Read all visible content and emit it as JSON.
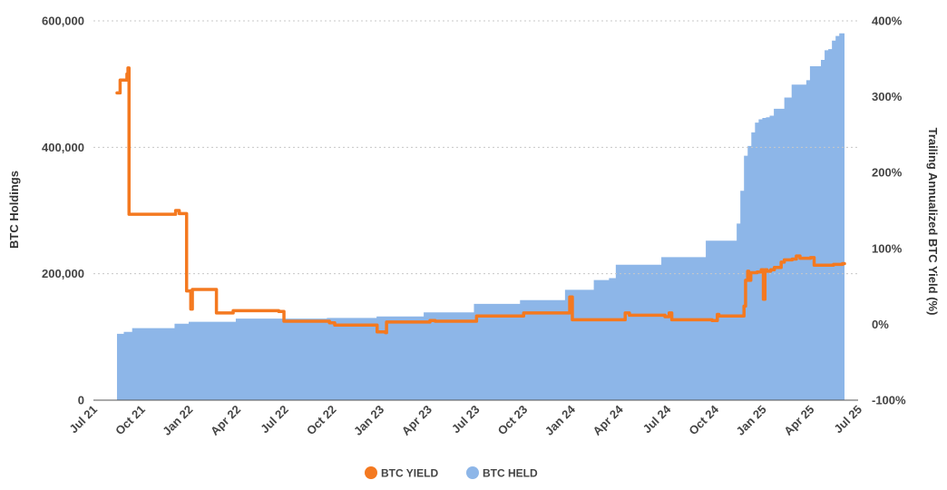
{
  "chart_data": {
    "type": "area",
    "x_tick_labels": [
      "Jul 21",
      "Oct 21",
      "Jan 22",
      "Apr 22",
      "Jul 22",
      "Oct 22",
      "Jan 23",
      "Apr 23",
      "Jul 23",
      "Oct 23",
      "Jan 24",
      "Apr 24",
      "Jul 24",
      "Oct 24",
      "Jan 25",
      "Apr 25",
      "Jul 25"
    ],
    "xlim": [
      "2021-07-01",
      "2025-07-01"
    ],
    "ylabel_left": "BTC Holdings",
    "ylabel_right": "Trailing Annualized BTC Yield (%)",
    "ylim_left": [
      0,
      600000
    ],
    "ylim_right": [
      -100,
      400
    ],
    "y_left_ticks": [
      0,
      200000,
      400000,
      600000
    ],
    "y_left_tick_labels": [
      "0",
      "200,000",
      "400,000",
      "600,000"
    ],
    "y_right_ticks": [
      -100,
      0,
      100,
      200,
      300,
      400
    ],
    "y_right_tick_labels": [
      "-100%",
      "0%",
      "100%",
      "200%",
      "300%",
      "400%"
    ],
    "grid": "horizontal dotted",
    "legend_position": "bottom-center",
    "colors": {
      "btc_yield": "#f47920",
      "btc_held": "#8db6e8",
      "grid": "#c8c8c8",
      "baseline": "#555555"
    },
    "series": [
      {
        "name": "BTC YIELD",
        "axis": "right",
        "kind": "step-line",
        "points": [
          [
            "2021-08-15",
            305
          ],
          [
            "2021-08-21",
            322
          ],
          [
            "2021-09-01",
            322
          ],
          [
            "2021-09-03",
            330
          ],
          [
            "2021-09-05",
            338
          ],
          [
            "2021-09-07",
            145
          ],
          [
            "2021-12-01",
            145
          ],
          [
            "2021-12-05",
            150
          ],
          [
            "2021-12-08",
            150
          ],
          [
            "2021-12-12",
            146
          ],
          [
            "2021-12-20",
            146
          ],
          [
            "2021-12-26",
            44
          ],
          [
            "2022-01-01",
            44
          ],
          [
            "2022-01-03",
            20
          ],
          [
            "2022-01-06",
            46
          ],
          [
            "2022-02-15",
            46
          ],
          [
            "2022-02-21",
            15
          ],
          [
            "2022-03-20",
            15
          ],
          [
            "2022-03-25",
            18
          ],
          [
            "2022-06-20",
            17
          ],
          [
            "2022-06-30",
            4
          ],
          [
            "2022-09-25",
            2
          ],
          [
            "2022-10-05",
            -1
          ],
          [
            "2022-12-20",
            -1
          ],
          [
            "2022-12-25",
            -10
          ],
          [
            "2023-01-10",
            -11
          ],
          [
            "2023-01-12",
            3
          ],
          [
            "2023-04-01",
            3
          ],
          [
            "2023-04-05",
            5
          ],
          [
            "2023-04-15",
            4
          ],
          [
            "2023-06-30",
            4
          ],
          [
            "2023-07-03",
            11
          ],
          [
            "2023-09-15",
            11
          ],
          [
            "2023-10-01",
            15
          ],
          [
            "2023-12-20",
            15
          ],
          [
            "2023-12-28",
            36
          ],
          [
            "2024-01-02",
            6
          ],
          [
            "2024-04-05",
            6
          ],
          [
            "2024-04-12",
            15
          ],
          [
            "2024-04-20",
            12
          ],
          [
            "2024-06-20",
            12
          ],
          [
            "2024-06-27",
            10
          ],
          [
            "2024-07-05",
            15
          ],
          [
            "2024-07-10",
            6
          ],
          [
            "2024-09-25",
            5
          ],
          [
            "2024-10-05",
            13
          ],
          [
            "2024-10-08",
            11
          ],
          [
            "2024-11-20",
            11
          ],
          [
            "2024-11-25",
            24
          ],
          [
            "2024-11-28",
            58
          ],
          [
            "2024-12-02",
            70
          ],
          [
            "2024-12-04",
            58
          ],
          [
            "2024-12-08",
            68
          ],
          [
            "2024-12-20",
            69
          ],
          [
            "2024-12-28",
            72
          ],
          [
            "2025-01-01",
            33
          ],
          [
            "2025-01-04",
            72
          ],
          [
            "2025-01-08",
            70
          ],
          [
            "2025-01-15",
            72
          ],
          [
            "2025-01-22",
            75
          ],
          [
            "2025-02-01",
            75
          ],
          [
            "2025-02-04",
            82
          ],
          [
            "2025-02-10",
            85
          ],
          [
            "2025-02-25",
            86
          ],
          [
            "2025-03-05",
            90
          ],
          [
            "2025-03-12",
            87
          ],
          [
            "2025-03-25",
            87
          ],
          [
            "2025-04-01",
            88
          ],
          [
            "2025-04-08",
            78
          ],
          [
            "2025-04-25",
            78
          ],
          [
            "2025-05-08",
            78
          ],
          [
            "2025-05-15",
            79
          ],
          [
            "2025-05-25",
            79
          ],
          [
            "2025-06-01",
            80
          ],
          [
            "2025-06-05",
            80
          ]
        ]
      },
      {
        "name": "BTC HELD",
        "axis": "left",
        "kind": "step-area",
        "points": [
          [
            "2021-08-15",
            105000
          ],
          [
            "2021-08-28",
            108000
          ],
          [
            "2021-09-13",
            114000
          ],
          [
            "2021-12-03",
            121000
          ],
          [
            "2021-12-30",
            124000
          ],
          [
            "2022-03-30",
            129000
          ],
          [
            "2022-09-20",
            130000
          ],
          [
            "2022-12-24",
            132500
          ],
          [
            "2023-03-24",
            138900
          ],
          [
            "2023-06-28",
            152300
          ],
          [
            "2023-09-24",
            158200
          ],
          [
            "2023-12-19",
            174500
          ],
          [
            "2024-02-12",
            190000
          ],
          [
            "2024-03-12",
            193000
          ],
          [
            "2024-03-25",
            214200
          ],
          [
            "2024-06-20",
            226300
          ],
          [
            "2024-09-13",
            252200
          ],
          [
            "2024-11-11",
            279400
          ],
          [
            "2024-11-18",
            331200
          ],
          [
            "2024-11-25",
            386700
          ],
          [
            "2024-12-02",
            402100
          ],
          [
            "2024-12-09",
            423600
          ],
          [
            "2024-12-16",
            439000
          ],
          [
            "2024-12-23",
            444300
          ],
          [
            "2024-12-30",
            446400
          ],
          [
            "2025-01-06",
            447500
          ],
          [
            "2025-01-13",
            450000
          ],
          [
            "2025-01-21",
            461000
          ],
          [
            "2025-02-10",
            478700
          ],
          [
            "2025-02-24",
            499100
          ],
          [
            "2025-03-17",
            499200
          ],
          [
            "2025-03-24",
            506100
          ],
          [
            "2025-03-31",
            528200
          ],
          [
            "2025-04-21",
            538200
          ],
          [
            "2025-04-28",
            553600
          ],
          [
            "2025-05-05",
            555400
          ],
          [
            "2025-05-12",
            568800
          ],
          [
            "2025-05-19",
            576200
          ],
          [
            "2025-05-26",
            580200
          ],
          [
            "2025-06-02",
            580250
          ],
          [
            "2025-06-05",
            580250
          ]
        ]
      }
    ]
  }
}
